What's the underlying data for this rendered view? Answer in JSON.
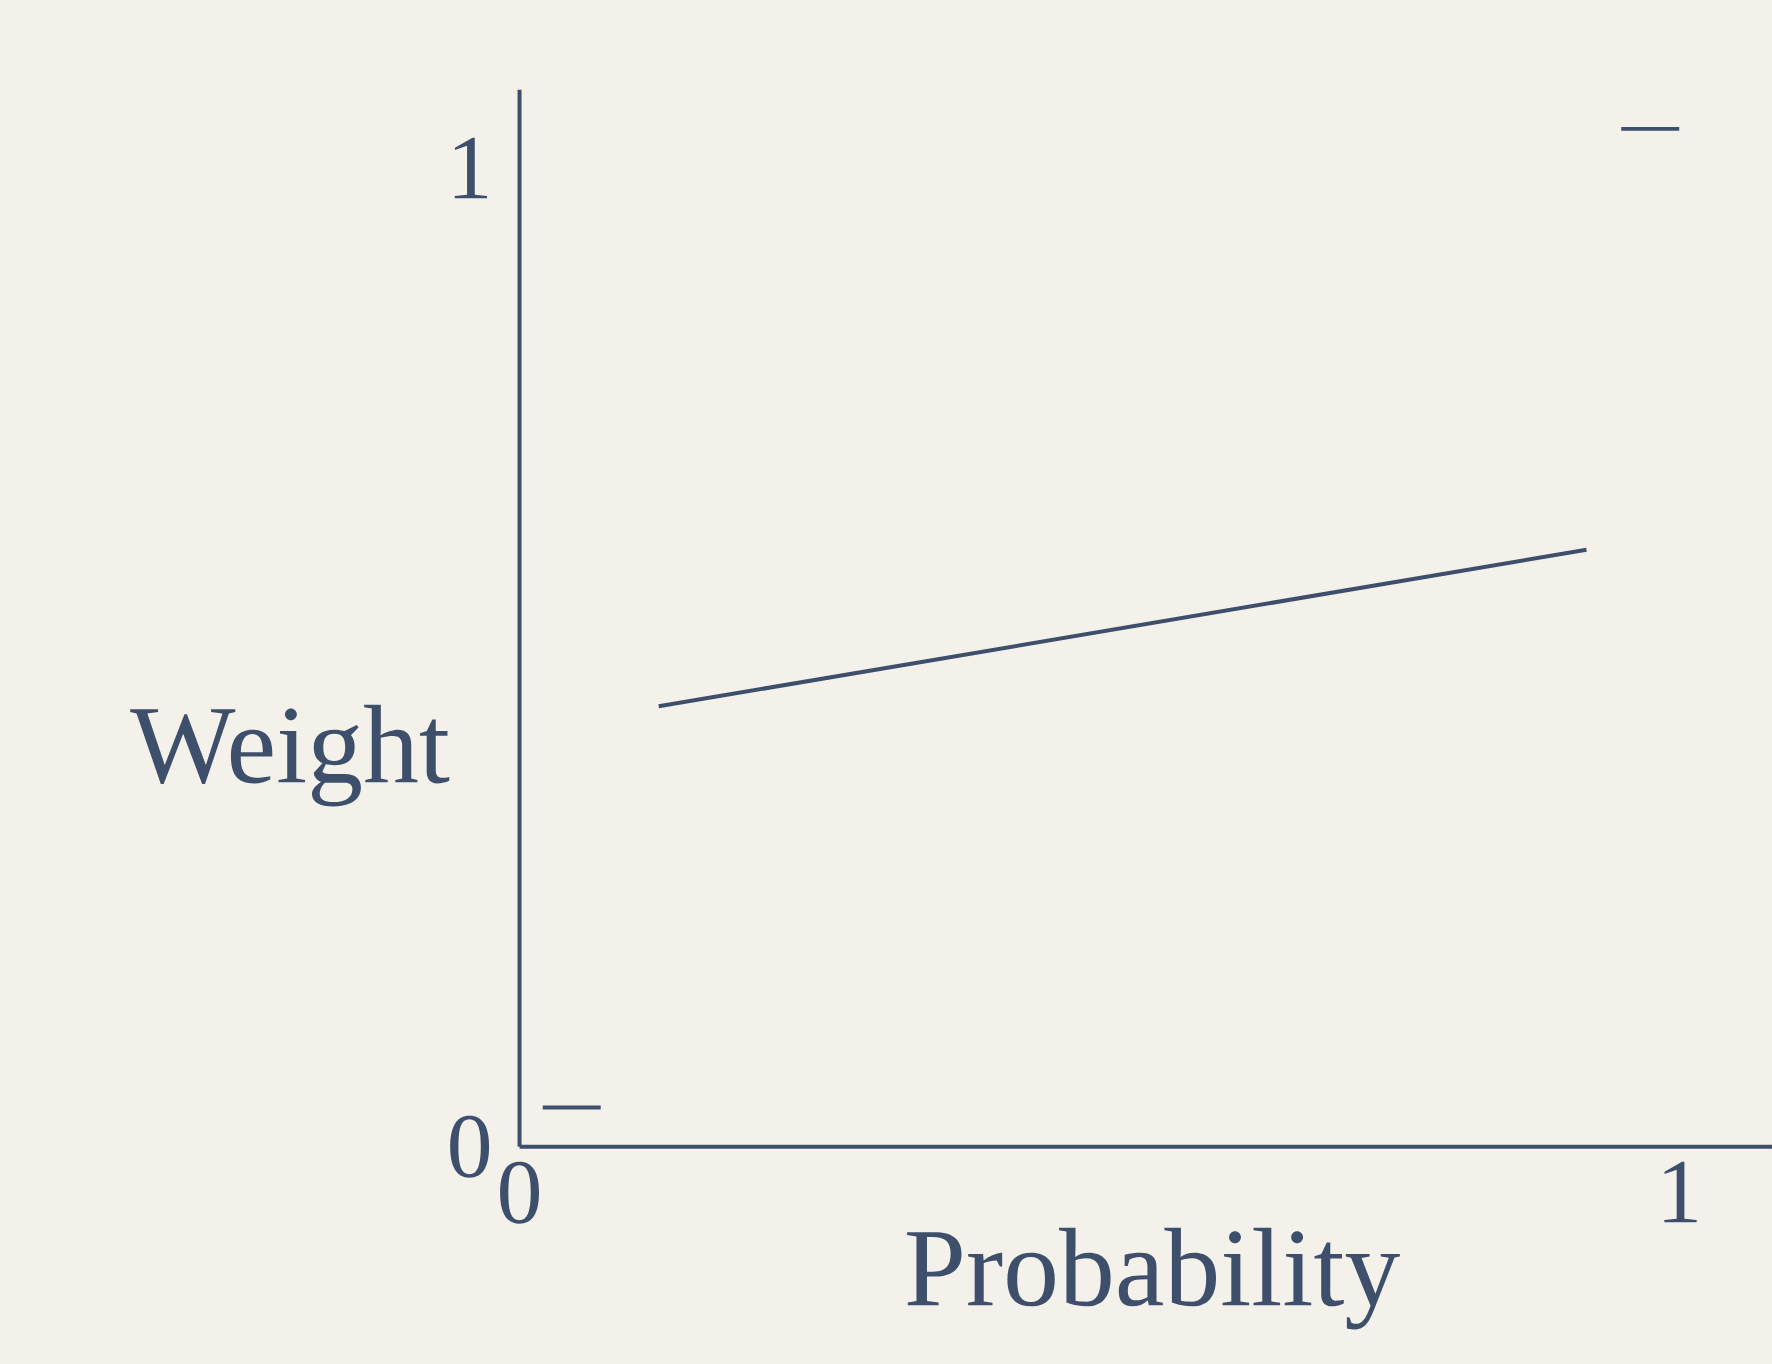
{
  "chart_data": {
    "type": "line",
    "xlabel": "Probability",
    "ylabel": "Weight",
    "xlim": [
      0,
      1.08
    ],
    "ylim": [
      0,
      1.08
    ],
    "xticks": [
      0,
      1
    ],
    "yticks": [
      0,
      1
    ],
    "series": [
      {
        "color": "#3e4f6c",
        "x": [
          0.12,
          0.92
        ],
        "values": [
          0.45,
          0.61
        ]
      },
      {
        "color": "#3e4f6c",
        "x": [
          0.02,
          0.07
        ],
        "values": [
          0.04,
          0.04
        ]
      },
      {
        "color": "#3e4f6c",
        "x": [
          0.95,
          1.0
        ],
        "values": [
          1.04,
          1.04
        ]
      }
    ]
  }
}
